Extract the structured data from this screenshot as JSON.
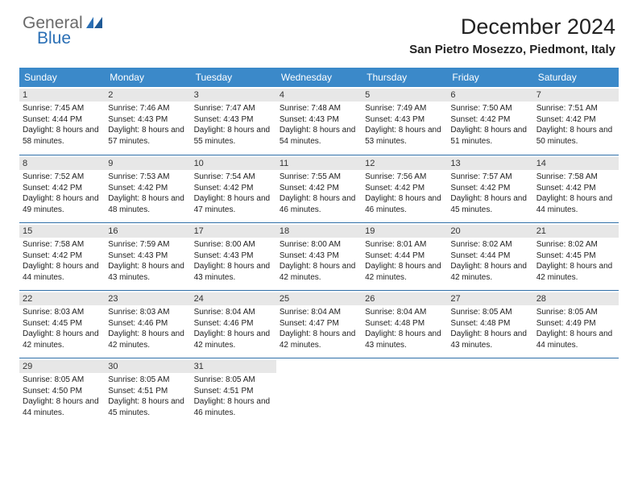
{
  "logo": {
    "word1": "General",
    "word2": "Blue"
  },
  "title": "December 2024",
  "location": "San Pietro Mosezzo, Piedmont, Italy",
  "colors": {
    "header_bg": "#3b89c9",
    "header_fg": "#ffffff",
    "daynum_bg": "#e7e7e7",
    "row_border": "#2f6fa8",
    "logo_gray": "#6a6a6a",
    "logo_blue": "#2a6fb5"
  },
  "weekdays": [
    "Sunday",
    "Monday",
    "Tuesday",
    "Wednesday",
    "Thursday",
    "Friday",
    "Saturday"
  ],
  "weeks": [
    [
      {
        "n": "1",
        "sr": "7:45 AM",
        "ss": "4:44 PM",
        "dl": "8 hours and 58 minutes."
      },
      {
        "n": "2",
        "sr": "7:46 AM",
        "ss": "4:43 PM",
        "dl": "8 hours and 57 minutes."
      },
      {
        "n": "3",
        "sr": "7:47 AM",
        "ss": "4:43 PM",
        "dl": "8 hours and 55 minutes."
      },
      {
        "n": "4",
        "sr": "7:48 AM",
        "ss": "4:43 PM",
        "dl": "8 hours and 54 minutes."
      },
      {
        "n": "5",
        "sr": "7:49 AM",
        "ss": "4:43 PM",
        "dl": "8 hours and 53 minutes."
      },
      {
        "n": "6",
        "sr": "7:50 AM",
        "ss": "4:42 PM",
        "dl": "8 hours and 51 minutes."
      },
      {
        "n": "7",
        "sr": "7:51 AM",
        "ss": "4:42 PM",
        "dl": "8 hours and 50 minutes."
      }
    ],
    [
      {
        "n": "8",
        "sr": "7:52 AM",
        "ss": "4:42 PM",
        "dl": "8 hours and 49 minutes."
      },
      {
        "n": "9",
        "sr": "7:53 AM",
        "ss": "4:42 PM",
        "dl": "8 hours and 48 minutes."
      },
      {
        "n": "10",
        "sr": "7:54 AM",
        "ss": "4:42 PM",
        "dl": "8 hours and 47 minutes."
      },
      {
        "n": "11",
        "sr": "7:55 AM",
        "ss": "4:42 PM",
        "dl": "8 hours and 46 minutes."
      },
      {
        "n": "12",
        "sr": "7:56 AM",
        "ss": "4:42 PM",
        "dl": "8 hours and 46 minutes."
      },
      {
        "n": "13",
        "sr": "7:57 AM",
        "ss": "4:42 PM",
        "dl": "8 hours and 45 minutes."
      },
      {
        "n": "14",
        "sr": "7:58 AM",
        "ss": "4:42 PM",
        "dl": "8 hours and 44 minutes."
      }
    ],
    [
      {
        "n": "15",
        "sr": "7:58 AM",
        "ss": "4:42 PM",
        "dl": "8 hours and 44 minutes."
      },
      {
        "n": "16",
        "sr": "7:59 AM",
        "ss": "4:43 PM",
        "dl": "8 hours and 43 minutes."
      },
      {
        "n": "17",
        "sr": "8:00 AM",
        "ss": "4:43 PM",
        "dl": "8 hours and 43 minutes."
      },
      {
        "n": "18",
        "sr": "8:00 AM",
        "ss": "4:43 PM",
        "dl": "8 hours and 42 minutes."
      },
      {
        "n": "19",
        "sr": "8:01 AM",
        "ss": "4:44 PM",
        "dl": "8 hours and 42 minutes."
      },
      {
        "n": "20",
        "sr": "8:02 AM",
        "ss": "4:44 PM",
        "dl": "8 hours and 42 minutes."
      },
      {
        "n": "21",
        "sr": "8:02 AM",
        "ss": "4:45 PM",
        "dl": "8 hours and 42 minutes."
      }
    ],
    [
      {
        "n": "22",
        "sr": "8:03 AM",
        "ss": "4:45 PM",
        "dl": "8 hours and 42 minutes."
      },
      {
        "n": "23",
        "sr": "8:03 AM",
        "ss": "4:46 PM",
        "dl": "8 hours and 42 minutes."
      },
      {
        "n": "24",
        "sr": "8:04 AM",
        "ss": "4:46 PM",
        "dl": "8 hours and 42 minutes."
      },
      {
        "n": "25",
        "sr": "8:04 AM",
        "ss": "4:47 PM",
        "dl": "8 hours and 42 minutes."
      },
      {
        "n": "26",
        "sr": "8:04 AM",
        "ss": "4:48 PM",
        "dl": "8 hours and 43 minutes."
      },
      {
        "n": "27",
        "sr": "8:05 AM",
        "ss": "4:48 PM",
        "dl": "8 hours and 43 minutes."
      },
      {
        "n": "28",
        "sr": "8:05 AM",
        "ss": "4:49 PM",
        "dl": "8 hours and 44 minutes."
      }
    ],
    [
      {
        "n": "29",
        "sr": "8:05 AM",
        "ss": "4:50 PM",
        "dl": "8 hours and 44 minutes."
      },
      {
        "n": "30",
        "sr": "8:05 AM",
        "ss": "4:51 PM",
        "dl": "8 hours and 45 minutes."
      },
      {
        "n": "31",
        "sr": "8:05 AM",
        "ss": "4:51 PM",
        "dl": "8 hours and 46 minutes."
      },
      null,
      null,
      null,
      null
    ]
  ],
  "labels": {
    "sunrise": "Sunrise:",
    "sunset": "Sunset:",
    "daylight": "Daylight:"
  }
}
